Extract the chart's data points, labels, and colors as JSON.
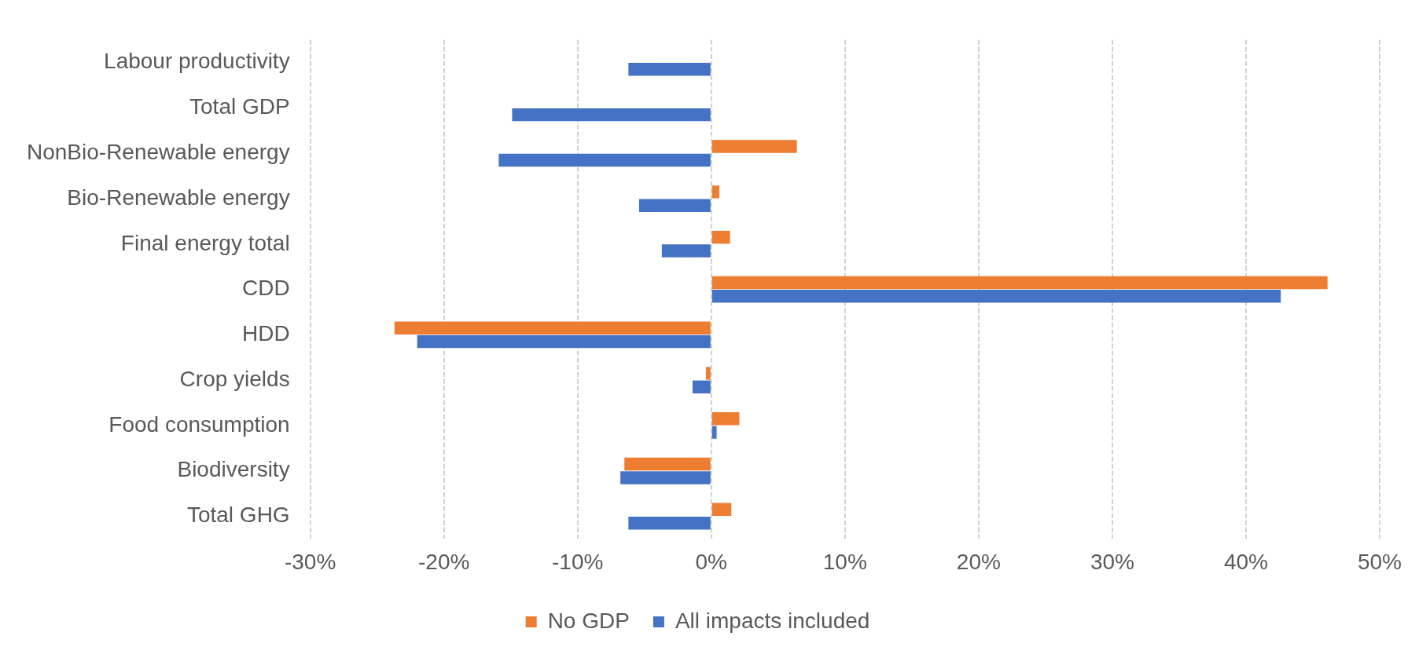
{
  "chart_data": {
    "type": "bar",
    "orientation": "horizontal",
    "categories": [
      "Labour productivity",
      "Total GDP",
      "NonBio-Renewable energy",
      "Bio-Renewable energy",
      "Final energy total",
      "CDD",
      "HDD",
      "Crop yields",
      "Food consumption",
      "Biodiversity",
      "Total GHG"
    ],
    "series": [
      {
        "name": "No GDP",
        "color": "#ed7d31",
        "values": [
          null,
          null,
          6.4,
          0.6,
          1.4,
          46.1,
          -23.7,
          -0.4,
          2.1,
          -6.5,
          1.5
        ]
      },
      {
        "name": "All impacts included",
        "color": "#4472c4",
        "values": [
          -6.2,
          -14.9,
          -15.9,
          -5.4,
          -3.7,
          42.6,
          -22.0,
          -1.4,
          0.4,
          -6.8,
          -6.2
        ]
      }
    ],
    "xlim": [
      -30,
      50
    ],
    "xticks": [
      {
        "value": -30,
        "label": "-30%"
      },
      {
        "value": -20,
        "label": "-20%"
      },
      {
        "value": -10,
        "label": "-10%"
      },
      {
        "value": 0,
        "label": "0%"
      },
      {
        "value": 10,
        "label": "10%"
      },
      {
        "value": 20,
        "label": "20%"
      },
      {
        "value": 30,
        "label": "30%"
      },
      {
        "value": 40,
        "label": "40%"
      },
      {
        "value": 50,
        "label": "50%"
      }
    ],
    "grid": "x",
    "legend": "bottom"
  }
}
